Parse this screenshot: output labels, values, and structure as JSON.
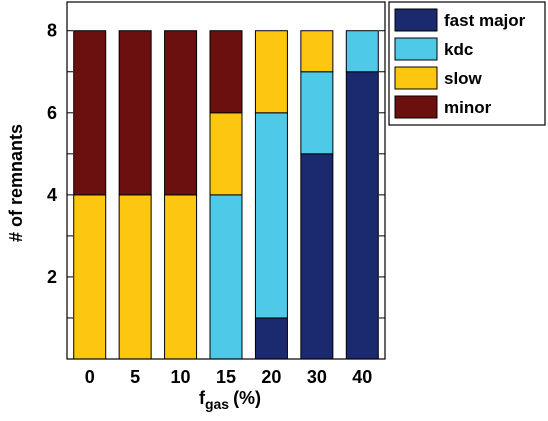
{
  "chart_data": {
    "type": "bar",
    "stacked": true,
    "categories": [
      "0",
      "5",
      "10",
      "15",
      "20",
      "30",
      "40"
    ],
    "series": [
      {
        "name": "fast major",
        "color": "#1b2a6e",
        "values": [
          0,
          0,
          0,
          0,
          1,
          5,
          7
        ]
      },
      {
        "name": "kdc",
        "color": "#4ec9e8",
        "values": [
          0,
          0,
          0,
          4,
          5,
          2,
          1
        ]
      },
      {
        "name": "slow",
        "color": "#fdc610",
        "values": [
          4,
          4,
          4,
          2,
          2,
          1,
          0
        ]
      },
      {
        "name": "minor",
        "color": "#6b0f0f",
        "values": [
          4,
          4,
          4,
          2,
          0,
          0,
          0
        ]
      }
    ],
    "ylabel": "# of remnants",
    "xlabel_main": "f",
    "xlabel_sub": "gas",
    "xlabel_unit": "(%)",
    "ylim": [
      0,
      8.7
    ],
    "yticks": [
      "2",
      "4",
      "6",
      "8"
    ],
    "legend_position": "top-right-outside",
    "grid": false
  }
}
